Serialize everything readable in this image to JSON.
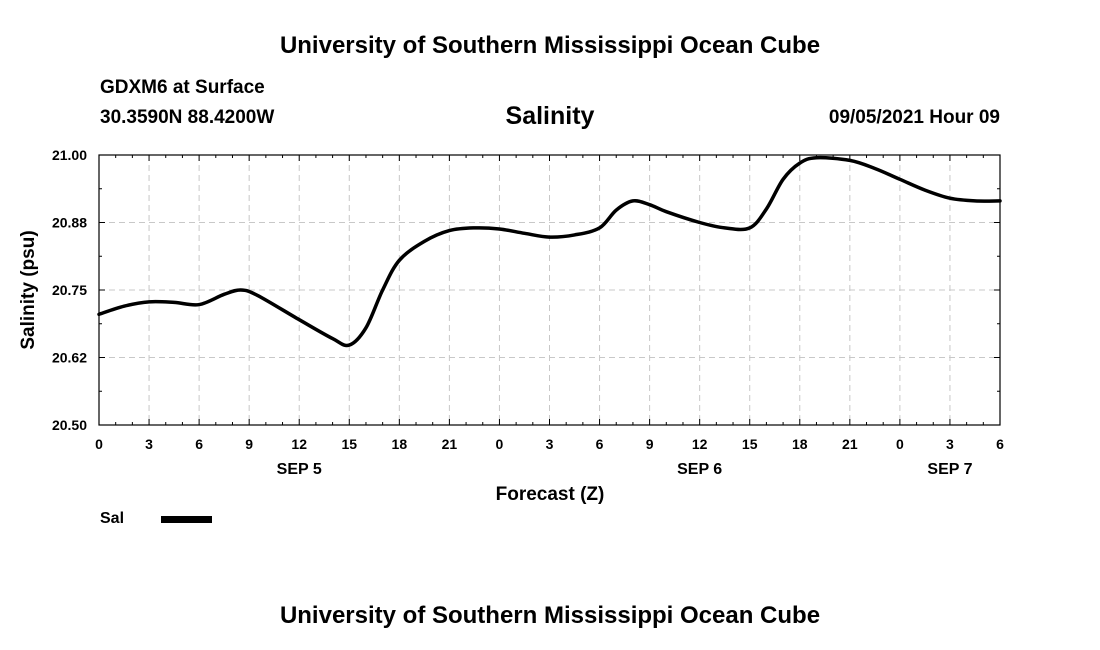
{
  "header": {
    "title": "University of Southern Mississippi Ocean Cube"
  },
  "footer": {
    "title": "University of Southern Mississippi Ocean Cube"
  },
  "station": {
    "name": "GDXM6 at Surface",
    "coords": "30.3590N  88.4200W",
    "datetime": "09/05/2021 Hour 09"
  },
  "legend": {
    "label": "Sal"
  },
  "chart_data": {
    "type": "line",
    "title": "Salinity",
    "xlabel": "Forecast (Z)",
    "ylabel": "Salinity (psu)",
    "ylim": [
      20.5,
      21.0
    ],
    "y_ticks": [
      20.5,
      20.625,
      20.75,
      20.875,
      21.0
    ],
    "y_tick_labels": [
      "20.50",
      "20.62",
      "20.75",
      "20.88",
      "21.00"
    ],
    "x_range_hours": [
      0,
      54
    ],
    "x_ticks": [
      0,
      3,
      6,
      9,
      12,
      15,
      18,
      21,
      24,
      27,
      30,
      33,
      36,
      39,
      42,
      45,
      48,
      51,
      54
    ],
    "x_tick_labels": [
      "0",
      "3",
      "6",
      "9",
      "12",
      "15",
      "18",
      "21",
      "0",
      "3",
      "6",
      "9",
      "12",
      "15",
      "18",
      "21",
      "0",
      "3",
      "6"
    ],
    "date_labels": [
      {
        "hour": 12,
        "label": "SEP 5"
      },
      {
        "hour": 36,
        "label": "SEP 6"
      },
      {
        "hour": 51,
        "label": "SEP 7"
      }
    ],
    "grid": true,
    "series": [
      {
        "name": "Sal",
        "color": "#000000",
        "x": [
          0,
          1.5,
          3,
          4.5,
          6,
          7.5,
          8.5,
          9.5,
          12,
          14,
          15,
          16,
          17,
          18,
          19.5,
          21,
          22.5,
          24,
          25.5,
          27,
          28.5,
          30,
          31,
          32,
          33,
          34,
          36,
          37.5,
          39,
          40,
          41,
          42,
          43,
          45,
          46.5,
          48,
          49.5,
          51,
          52.5,
          54
        ],
        "values": [
          20.705,
          20.72,
          20.728,
          20.727,
          20.723,
          20.742,
          20.75,
          20.74,
          20.695,
          20.66,
          20.648,
          20.68,
          20.75,
          20.805,
          20.84,
          20.86,
          20.865,
          20.863,
          20.855,
          20.848,
          20.852,
          20.865,
          20.898,
          20.915,
          20.908,
          20.895,
          20.875,
          20.865,
          20.865,
          20.9,
          20.955,
          20.985,
          20.995,
          20.99,
          20.975,
          20.955,
          20.935,
          20.92,
          20.915,
          20.915
        ]
      }
    ]
  }
}
